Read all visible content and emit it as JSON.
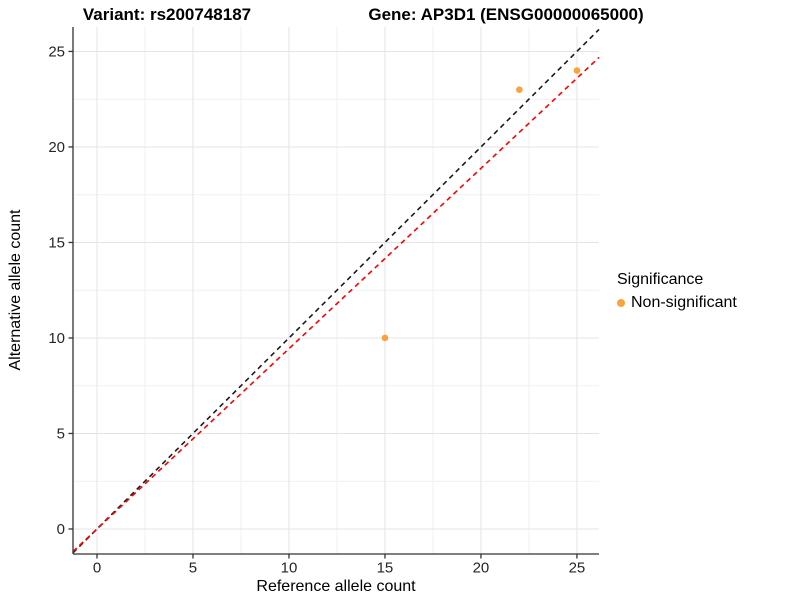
{
  "colors": {
    "point": "#FAA33B",
    "identity_line": "#1A1A1A",
    "expected_line": "#FF0000",
    "grid_major": "#E4E4E4",
    "grid_minor": "#F1F1F1",
    "axis_line": "#333333",
    "tick_label": "#262626",
    "background": "#FFFFFF"
  },
  "chart_data": {
    "type": "scatter",
    "titles": {
      "variant": "Variant: rs200748187",
      "gene": "Gene: AP3D1 (ENSG00000065000)"
    },
    "xlabel": "Reference allele count",
    "ylabel": "Alternative allele count",
    "xlim": [
      -1.25,
      26.15
    ],
    "ylim": [
      -1.31,
      26.28
    ],
    "x_ticks": [
      0,
      5,
      10,
      15,
      20,
      25
    ],
    "y_ticks": [
      0,
      5,
      10,
      15,
      20,
      25
    ],
    "x_minor_ticks": [
      2.5,
      7.5,
      12.5,
      17.5,
      22.5
    ],
    "y_minor_ticks": [
      2.5,
      7.5,
      12.5,
      17.5,
      22.5
    ],
    "grid": true,
    "series": [
      {
        "name": "Non-significant",
        "color": "#FAA33B",
        "points": [
          [
            15,
            10
          ],
          [
            22,
            23
          ],
          [
            25,
            24
          ]
        ]
      }
    ],
    "lines": [
      {
        "name": "identity",
        "slope": 1,
        "intercept": 0,
        "style": "dashed",
        "color": "#1A1A1A"
      },
      {
        "name": "expected",
        "slope": 0.944,
        "intercept": 0,
        "style": "dashed",
        "color": "#FF0000"
      }
    ],
    "legend": {
      "title": "Significance",
      "position": "right",
      "entries": [
        {
          "label": "Non-significant",
          "color": "#FAA33B"
        }
      ]
    }
  }
}
